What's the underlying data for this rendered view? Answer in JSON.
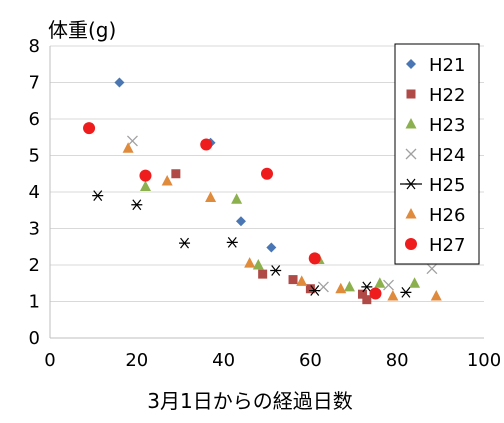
{
  "chart_data": {
    "type": "scatter",
    "xlabel": "3月1日からの経過日数",
    "ylabel": "体重(g)",
    "xlim": [
      0,
      100
    ],
    "ylim": [
      0,
      8
    ],
    "xticks": [
      0,
      20,
      40,
      60,
      80,
      100
    ],
    "yticks": [
      0,
      1,
      2,
      3,
      4,
      5,
      6,
      7,
      8
    ],
    "grid": "horizontal",
    "legend": "right",
    "series": [
      {
        "name": "H21",
        "marker": "diamond",
        "color": "#4a77b4",
        "points": [
          [
            16,
            7.0
          ],
          [
            37,
            5.35
          ],
          [
            44,
            3.2
          ],
          [
            51,
            2.48
          ],
          [
            61,
            2.2
          ]
        ]
      },
      {
        "name": "H22",
        "marker": "square",
        "color": "#b04a47",
        "points": [
          [
            29,
            4.5
          ],
          [
            49,
            1.75
          ],
          [
            56,
            1.6
          ],
          [
            60,
            1.35
          ],
          [
            72,
            1.2
          ],
          [
            73,
            1.05
          ]
        ]
      },
      {
        "name": "H23",
        "marker": "triangle",
        "color": "#8cb04e",
        "points": [
          [
            22,
            4.15
          ],
          [
            43,
            3.8
          ],
          [
            48,
            2.0
          ],
          [
            62,
            2.15
          ],
          [
            69,
            1.4
          ],
          [
            76,
            1.5
          ],
          [
            84,
            1.5
          ]
        ]
      },
      {
        "name": "H24",
        "marker": "x",
        "color": "#a0a0a0",
        "points": [
          [
            19,
            5.4
          ],
          [
            63,
            1.4
          ],
          [
            78,
            1.45
          ],
          [
            88,
            1.9
          ]
        ]
      },
      {
        "name": "H25",
        "marker": "star",
        "color": "#000000",
        "points": [
          [
            11,
            3.9
          ],
          [
            20,
            3.65
          ],
          [
            31,
            2.6
          ],
          [
            42,
            2.62
          ],
          [
            52,
            1.85
          ],
          [
            61,
            1.3
          ],
          [
            73,
            1.4
          ],
          [
            82,
            1.25
          ]
        ]
      },
      {
        "name": "H26",
        "marker": "triangle",
        "color": "#e08a3c",
        "points": [
          [
            18,
            5.2
          ],
          [
            27,
            4.3
          ],
          [
            37,
            3.85
          ],
          [
            46,
            2.05
          ],
          [
            58,
            1.55
          ],
          [
            67,
            1.35
          ],
          [
            79,
            1.15
          ],
          [
            89,
            1.15
          ]
        ]
      },
      {
        "name": "H27",
        "marker": "circle",
        "color": "#ee1c1c",
        "points": [
          [
            9,
            5.75
          ],
          [
            22,
            4.45
          ],
          [
            36,
            5.3
          ],
          [
            50,
            4.5
          ],
          [
            61,
            2.18
          ],
          [
            75,
            1.22
          ]
        ]
      }
    ]
  }
}
